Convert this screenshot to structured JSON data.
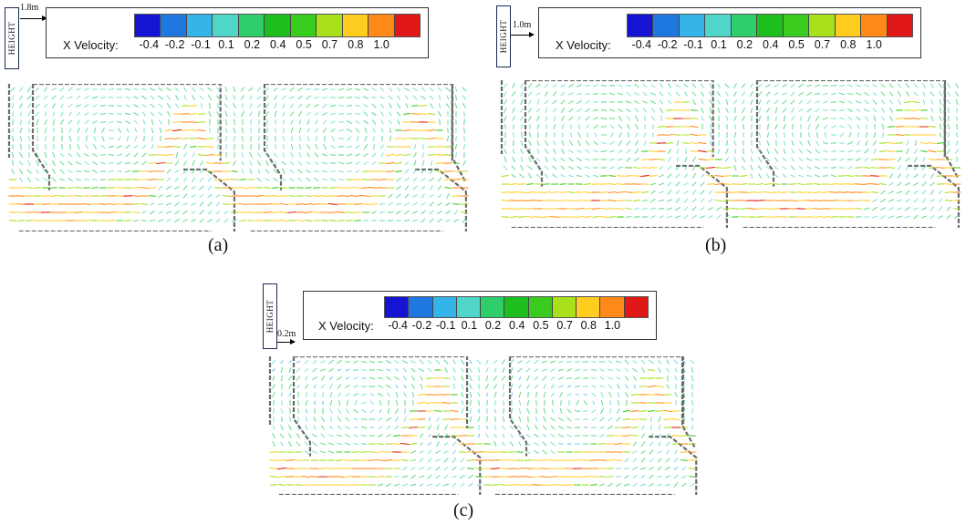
{
  "legend": {
    "label": "X Velocity:",
    "ticks": [
      "-0.4",
      "-0.2",
      "-0.1",
      "0.1",
      "0.2",
      "0.4",
      "0.5",
      "0.7",
      "0.8",
      "1.0"
    ],
    "colors": [
      "#1414d2",
      "#1f78e0",
      "#34b4e8",
      "#4fd6c8",
      "#2ecf6a",
      "#1fbe1f",
      "#39cc1f",
      "#a8e01c",
      "#ffcc20",
      "#ff8a1a",
      "#e01818"
    ]
  },
  "height_marker": {
    "label": "HEIGHT"
  },
  "panels": [
    {
      "scale_label": "1.8m",
      "caption": "(a)"
    },
    {
      "scale_label": "1.0m",
      "caption": "(b)"
    },
    {
      "scale_label": "0.2m",
      "caption": "(c)"
    }
  ]
}
